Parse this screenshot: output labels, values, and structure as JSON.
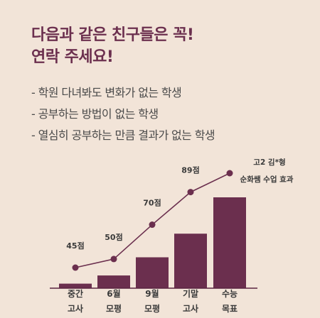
{
  "headline": {
    "line1": "다음과 같은 친구들은 꼭!",
    "line2": "연락 주세요!"
  },
  "bullets": [
    "학원 다녀봐도 변화가 없는 학생",
    "공부하는 방법이 없는 학생",
    "열심히 공부하는 만큼 결과가 없는 학생"
  ],
  "colors": {
    "background": "#f2e4d8",
    "accent": "#6b2f4e",
    "text": "#4a4a4a"
  },
  "chart_data": {
    "type": "bar",
    "categories": [
      [
        "중간",
        "고사"
      ],
      [
        "6월",
        "모평"
      ],
      [
        "9월",
        "모평"
      ],
      [
        "기말",
        "고사"
      ],
      [
        "수능",
        "목표"
      ]
    ],
    "values": [
      5,
      14,
      34,
      60,
      100
    ],
    "line_points": [
      {
        "label": "45점",
        "value": 45
      },
      {
        "label": "50점",
        "value": 50
      },
      {
        "label": "70점",
        "value": 70
      },
      {
        "label": "89점",
        "value": 89
      },
      {
        "label": "",
        "value": 100
      }
    ],
    "annotation": [
      "고2 김*형",
      "순화쌤 수업 효과"
    ],
    "ylim": [
      0,
      100
    ],
    "grid": false
  }
}
